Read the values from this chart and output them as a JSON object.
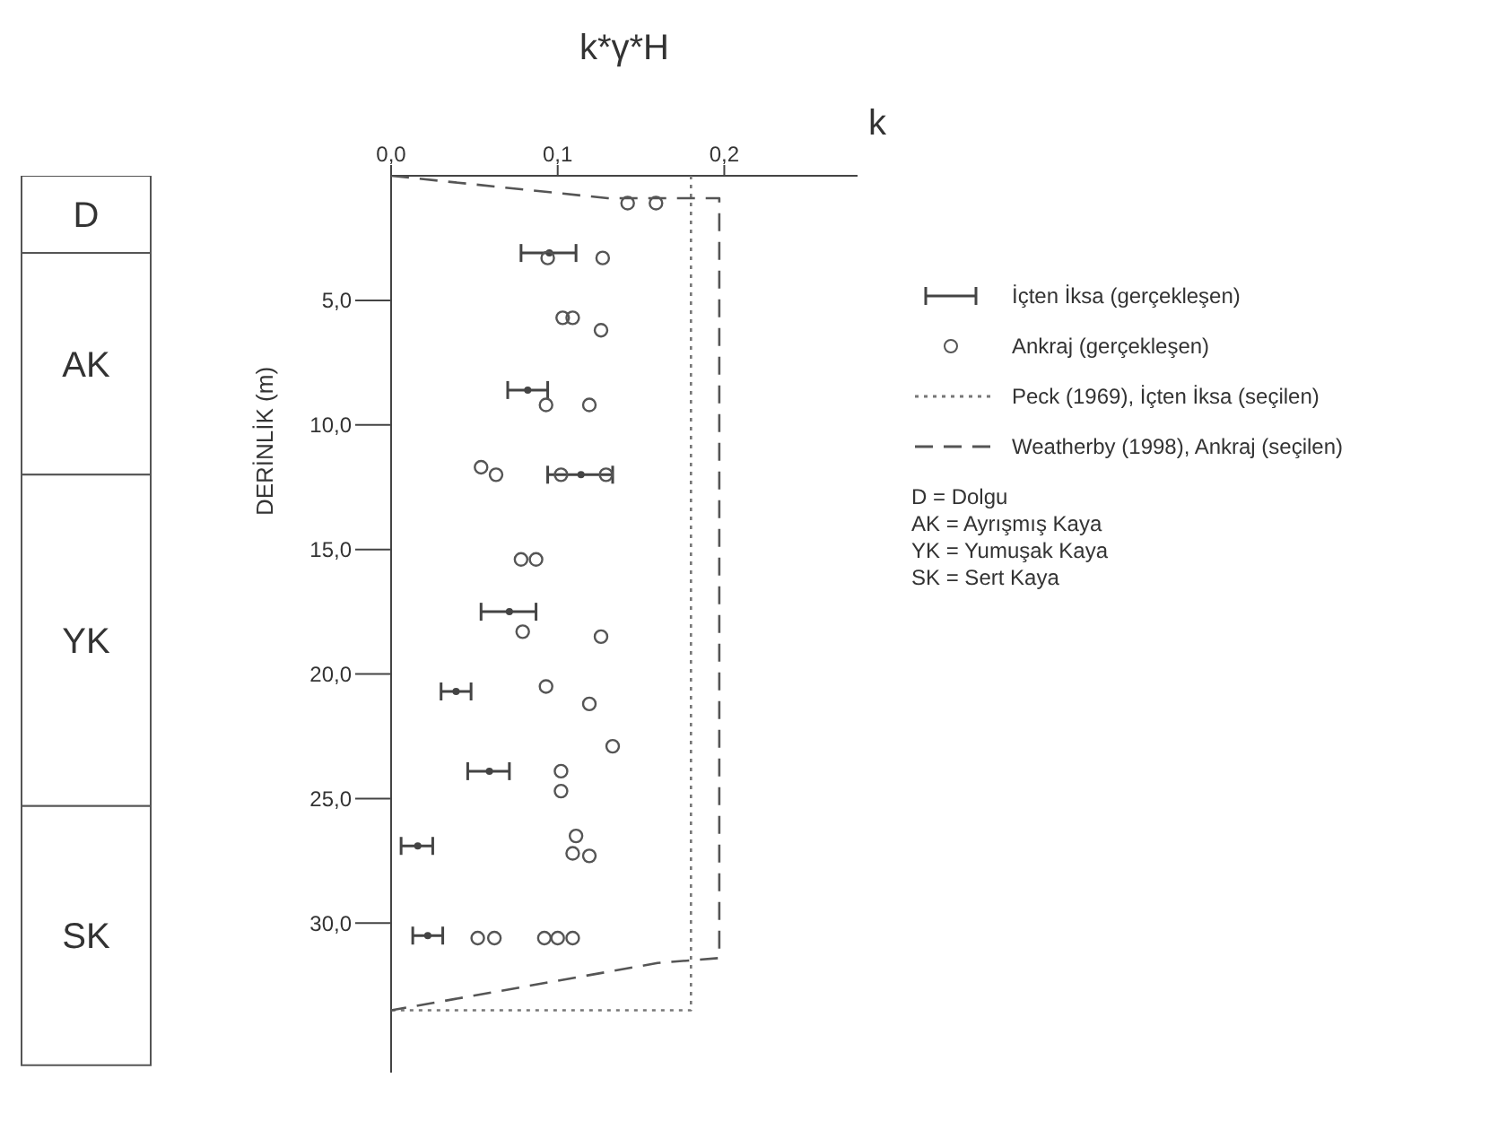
{
  "chart_data": [
    {
      "type": "bar",
      "stacked": true,
      "categories": [
        null
      ],
      "ylim": [
        36,
        0
      ],
      "tick_labels": false,
      "series": [
        {
          "name": "D",
          "color": "#ffffff",
          "values": [
            3.1
          ]
        },
        {
          "name": "AK",
          "color": "#ffffff",
          "values": [
            8.9
          ]
        },
        {
          "name": "YK",
          "color": "#ffffff",
          "values": [
            13.3
          ]
        },
        {
          "name": "SK",
          "color": "#ffffff",
          "values": [
            10.4
          ]
        }
      ]
    },
    {
      "type": "scatter",
      "title": "k*γ*H",
      "xlabel": "k",
      "ylabel": "DERİNLİK (m)",
      "xlim": [
        0,
        0.28
      ],
      "xticks": [
        {
          "value": 0,
          "label": "0,0"
        },
        {
          "value": 0.1,
          "label": "0,1"
        },
        {
          "value": 0.2,
          "label": "0,2"
        }
      ],
      "ylim": [
        36,
        0
      ],
      "yticks": [
        {
          "value": 5,
          "label": "5,0"
        },
        {
          "value": 10,
          "label": "10,0"
        },
        {
          "value": 15,
          "label": "15,0"
        },
        {
          "value": 20,
          "label": "20,0"
        },
        {
          "value": 25,
          "label": "25,0"
        },
        {
          "value": 30,
          "label": "30,0"
        }
      ],
      "grid": false,
      "legend": "right",
      "series": [
        {
          "name": "İçten İksa (gerçekleşen)",
          "type": "scatter",
          "color": "#444444",
          "x": [
            0.095,
            0.082,
            0.114,
            0.071,
            0.039,
            0.059,
            0.016,
            0.022
          ],
          "values": [
            3.1,
            8.6,
            12.0,
            17.5,
            20.7,
            23.9,
            26.9,
            30.5
          ],
          "xerrors": [
            [
              0.078,
              0.111
            ],
            [
              0.07,
              0.094
            ],
            [
              0.094,
              0.133
            ],
            [
              0.054,
              0.087
            ],
            [
              0.03,
              0.048
            ],
            [
              0.046,
              0.071
            ],
            [
              0.006,
              0.025
            ],
            [
              0.013,
              0.031
            ]
          ]
        },
        {
          "name": "Ankraj (gerçekleşen)",
          "type": "scatter",
          "marker": "circle",
          "color": "#555555",
          "x": [
            0.142,
            0.159,
            0.094,
            0.127,
            0.103,
            0.109,
            0.126,
            0.093,
            0.119,
            0.054,
            0.063,
            0.102,
            0.129,
            0.078,
            0.087,
            0.079,
            0.126,
            0.093,
            0.119,
            0.133,
            0.102,
            0.102,
            0.111,
            0.109,
            0.119,
            0.052,
            0.062,
            0.092,
            0.1,
            0.109
          ],
          "values": [
            1.1,
            1.1,
            3.3,
            3.3,
            5.7,
            5.7,
            6.2,
            9.2,
            9.2,
            11.7,
            12.0,
            12.0,
            12.0,
            15.4,
            15.4,
            18.3,
            18.5,
            20.5,
            21.2,
            22.9,
            23.9,
            24.7,
            26.5,
            27.2,
            27.3,
            30.6,
            30.6,
            30.6,
            30.6,
            30.6
          ]
        },
        {
          "name": "Peck (1969), İçten İksa (seçilen)",
          "type": "line",
          "marker": "none",
          "line_style": "dotted",
          "color": "#777777",
          "x": [
            0.18,
            0.18,
            0
          ],
          "values": [
            0,
            33.5,
            33.5
          ]
        },
        {
          "name": "Weatherby (1998), Ankraj (seçilen)",
          "type": "line",
          "marker": "none",
          "line_style": "dashed",
          "color": "#555555",
          "x": [
            0,
            0.13,
            0.197,
            0.197,
            0.16,
            0
          ],
          "values": [
            0,
            0.9,
            0.9,
            31.4,
            31.6,
            33.5
          ]
        }
      ],
      "annotations": [
        "D = Dolgu",
        "AK = Ayrışmış Kaya",
        "YK = Yumuşak Kaya",
        "SK = Sert Kaya"
      ]
    }
  ]
}
